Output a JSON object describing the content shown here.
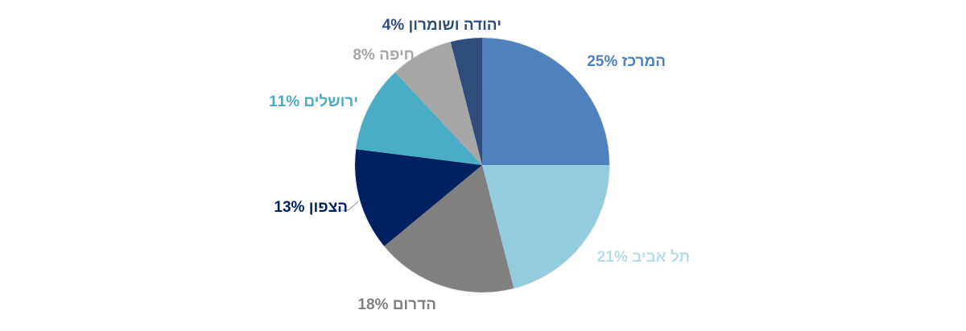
{
  "chart_data": {
    "type": "pie",
    "slices": [
      {
        "label": "המרכז",
        "value": 25,
        "display": "המרכז 25%",
        "color": "#4f81bd"
      },
      {
        "label": "תל אביב",
        "value": 21,
        "display": "תל אביב 21%",
        "color": "#93cddd"
      },
      {
        "label": "הדרום",
        "value": 18,
        "display": "הדרום 18%",
        "color": "#808080"
      },
      {
        "label": "הצפון",
        "value": 13,
        "display": "הצפון 13%",
        "color": "#002060"
      },
      {
        "label": "ירושלים",
        "value": 11,
        "display": "ירושלים 11%",
        "color": "#4bacc6"
      },
      {
        "label": "חיפה",
        "value": 8,
        "display": "חיפה 8%",
        "color": "#a6a6a6"
      },
      {
        "label": "יהודה ושומרון",
        "value": 4,
        "display": "יהודה ושומרון 4%",
        "color": "#2e4d7a"
      }
    ],
    "label_colors": [
      "#4f81bd",
      "#b7dde8",
      "#808080",
      "#002060",
      "#4bacc6",
      "#a6a6a6",
      "#2e4d7a"
    ],
    "legend": "none"
  }
}
